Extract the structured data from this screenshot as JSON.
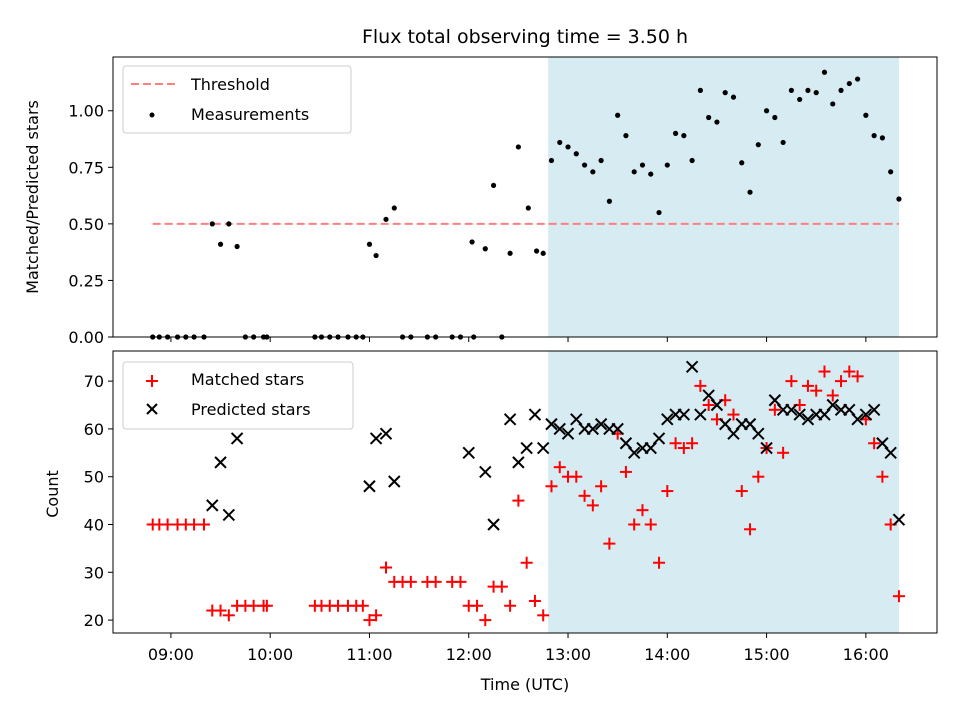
{
  "title": "Flux total observing time = 3.50 h",
  "colors": {
    "threshold": "#ff7f7f",
    "measurement": "#000000",
    "matched": "#ff0000",
    "predicted": "#000000",
    "span": "#add8e6"
  },
  "chart_data": [
    {
      "type": "scatter",
      "ylabel": "Matched/Predicted stars",
      "ylim": [
        0,
        1.2375
      ],
      "yticks": [
        "0.00",
        "0.25",
        "0.50",
        "0.75",
        "1.00"
      ],
      "legend": "top-left",
      "highlight_span": [
        "12:48",
        "16:20"
      ],
      "threshold": {
        "name": "Threshold",
        "value": 0.5,
        "x_start": "08:49",
        "x_end": "16:20"
      },
      "series": [
        {
          "name": "Measurements",
          "points": [
            [
              "08:49",
              0
            ],
            [
              "08:53",
              0
            ],
            [
              "08:58",
              0
            ],
            [
              "09:04",
              0
            ],
            [
              "09:09",
              0
            ],
            [
              "09:14",
              0
            ],
            [
              "09:20",
              0
            ],
            [
              "09:25",
              0.5
            ],
            [
              "09:30",
              0.41
            ],
            [
              "09:35",
              0.5
            ],
            [
              "09:40",
              0.4
            ],
            [
              "09:45",
              0
            ],
            [
              "09:50",
              0
            ],
            [
              "09:56",
              0
            ],
            [
              "09:58",
              0
            ],
            [
              "10:27",
              0
            ],
            [
              "10:31",
              0
            ],
            [
              "10:36",
              0
            ],
            [
              "10:41",
              0
            ],
            [
              "10:47",
              0
            ],
            [
              "10:52",
              0
            ],
            [
              "10:56",
              0
            ],
            [
              "11:00",
              0.41
            ],
            [
              "11:04",
              0.36
            ],
            [
              "11:10",
              0.52
            ],
            [
              "11:15",
              0.57
            ],
            [
              "11:20",
              0
            ],
            [
              "11:25",
              0
            ],
            [
              "11:35",
              0
            ],
            [
              "11:40",
              0
            ],
            [
              "11:50",
              0
            ],
            [
              "11:55",
              0
            ],
            [
              "12:02",
              0.42
            ],
            [
              "12:03",
              0
            ],
            [
              "12:10",
              0.39
            ],
            [
              "12:15",
              0.67
            ],
            [
              "12:20",
              0
            ],
            [
              "12:25",
              0.37
            ],
            [
              "12:30",
              0.84
            ],
            [
              "12:36",
              0.57
            ],
            [
              "12:41",
              0.38
            ],
            [
              "12:45",
              0.37
            ],
            [
              "12:50",
              0.78
            ],
            [
              "12:55",
              0.86
            ],
            [
              "13:00",
              0.84
            ],
            [
              "13:05",
              0.81
            ],
            [
              "13:10",
              0.76
            ],
            [
              "13:15",
              0.73
            ],
            [
              "13:20",
              0.78
            ],
            [
              "13:25",
              0.6
            ],
            [
              "13:30",
              0.98
            ],
            [
              "13:35",
              0.89
            ],
            [
              "13:40",
              0.73
            ],
            [
              "13:45",
              0.76
            ],
            [
              "13:50",
              0.72
            ],
            [
              "13:55",
              0.55
            ],
            [
              "14:00",
              0.76
            ],
            [
              "14:05",
              0.9
            ],
            [
              "14:10",
              0.89
            ],
            [
              "14:15",
              0.78
            ],
            [
              "14:20",
              1.09
            ],
            [
              "14:25",
              0.97
            ],
            [
              "14:30",
              0.95
            ],
            [
              "14:35",
              1.08
            ],
            [
              "14:40",
              1.06
            ],
            [
              "14:45",
              0.77
            ],
            [
              "14:50",
              0.64
            ],
            [
              "14:55",
              0.85
            ],
            [
              "15:00",
              1.0
            ],
            [
              "15:05",
              0.97
            ],
            [
              "15:10",
              0.86
            ],
            [
              "15:15",
              1.09
            ],
            [
              "15:20",
              1.05
            ],
            [
              "15:25",
              1.09
            ],
            [
              "15:30",
              1.08
            ],
            [
              "15:35",
              1.17
            ],
            [
              "15:40",
              1.03
            ],
            [
              "15:45",
              1.09
            ],
            [
              "15:50",
              1.12
            ],
            [
              "15:55",
              1.14
            ],
            [
              "16:00",
              0.98
            ],
            [
              "16:05",
              0.89
            ],
            [
              "16:10",
              0.88
            ],
            [
              "16:15",
              0.73
            ],
            [
              "16:20",
              0.61
            ]
          ]
        }
      ]
    },
    {
      "type": "scatter",
      "ylabel": "Count",
      "xlabel": "Time (UTC)",
      "ylim": [
        17.3,
        76.3
      ],
      "yticks": [
        "20",
        "30",
        "40",
        "50",
        "60",
        "70"
      ],
      "xlim": [
        "08:25",
        "16:43"
      ],
      "xticks": [
        "09:00",
        "10:00",
        "11:00",
        "12:00",
        "13:00",
        "14:00",
        "15:00",
        "16:00"
      ],
      "legend": "top-left",
      "highlight_span": [
        "12:48",
        "16:20"
      ],
      "series": [
        {
          "name": "Matched stars",
          "marker": "plus",
          "points": [
            [
              "08:49",
              40
            ],
            [
              "08:53",
              40
            ],
            [
              "08:58",
              40
            ],
            [
              "09:04",
              40
            ],
            [
              "09:09",
              40
            ],
            [
              "09:14",
              40
            ],
            [
              "09:20",
              40
            ],
            [
              "09:25",
              22
            ],
            [
              "09:30",
              22
            ],
            [
              "09:35",
              21
            ],
            [
              "09:40",
              23
            ],
            [
              "09:45",
              23
            ],
            [
              "09:50",
              23
            ],
            [
              "09:56",
              23
            ],
            [
              "09:58",
              23
            ],
            [
              "10:27",
              23
            ],
            [
              "10:31",
              23
            ],
            [
              "10:36",
              23
            ],
            [
              "10:41",
              23
            ],
            [
              "10:47",
              23
            ],
            [
              "10:52",
              23
            ],
            [
              "10:56",
              23
            ],
            [
              "11:00",
              20
            ],
            [
              "11:04",
              21
            ],
            [
              "11:10",
              31
            ],
            [
              "11:15",
              28
            ],
            [
              "11:20",
              28
            ],
            [
              "11:25",
              28
            ],
            [
              "11:35",
              28
            ],
            [
              "11:40",
              28
            ],
            [
              "11:50",
              28
            ],
            [
              "11:55",
              28
            ],
            [
              "12:00",
              23
            ],
            [
              "12:05",
              23
            ],
            [
              "12:10",
              20
            ],
            [
              "12:15",
              27
            ],
            [
              "12:20",
              27
            ],
            [
              "12:25",
              23
            ],
            [
              "12:30",
              45
            ],
            [
              "12:35",
              32
            ],
            [
              "12:40",
              24
            ],
            [
              "12:45",
              21
            ],
            [
              "12:50",
              48
            ],
            [
              "12:55",
              52
            ],
            [
              "13:00",
              50
            ],
            [
              "13:05",
              50
            ],
            [
              "13:10",
              46
            ],
            [
              "13:15",
              44
            ],
            [
              "13:20",
              48
            ],
            [
              "13:25",
              36
            ],
            [
              "13:30",
              59
            ],
            [
              "13:35",
              51
            ],
            [
              "13:40",
              40
            ],
            [
              "13:45",
              43
            ],
            [
              "13:50",
              40
            ],
            [
              "13:55",
              32
            ],
            [
              "14:00",
              47
            ],
            [
              "14:05",
              57
            ],
            [
              "14:10",
              56
            ],
            [
              "14:15",
              57
            ],
            [
              "14:20",
              69
            ],
            [
              "14:25",
              65
            ],
            [
              "14:30",
              62
            ],
            [
              "14:35",
              66
            ],
            [
              "14:40",
              63
            ],
            [
              "14:45",
              47
            ],
            [
              "14:50",
              39
            ],
            [
              "14:55",
              50
            ],
            [
              "15:00",
              56
            ],
            [
              "15:05",
              64
            ],
            [
              "15:10",
              55
            ],
            [
              "15:15",
              70
            ],
            [
              "15:20",
              65
            ],
            [
              "15:25",
              69
            ],
            [
              "15:30",
              68
            ],
            [
              "15:35",
              72
            ],
            [
              "15:40",
              67
            ],
            [
              "15:45",
              70
            ],
            [
              "15:50",
              72
            ],
            [
              "15:55",
              71
            ],
            [
              "16:00",
              62
            ],
            [
              "16:05",
              57
            ],
            [
              "16:10",
              50
            ],
            [
              "16:15",
              40
            ],
            [
              "16:20",
              25
            ]
          ]
        },
        {
          "name": "Predicted stars",
          "marker": "x",
          "points": [
            [
              "09:25",
              44
            ],
            [
              "09:30",
              53
            ],
            [
              "09:35",
              42
            ],
            [
              "09:40",
              58
            ],
            [
              "11:00",
              48
            ],
            [
              "11:04",
              58
            ],
            [
              "11:10",
              59
            ],
            [
              "11:15",
              49
            ],
            [
              "12:00",
              55
            ],
            [
              "12:10",
              51
            ],
            [
              "12:15",
              40
            ],
            [
              "12:25",
              62
            ],
            [
              "12:30",
              53
            ],
            [
              "12:35",
              56
            ],
            [
              "12:40",
              63
            ],
            [
              "12:45",
              56
            ],
            [
              "12:50",
              61
            ],
            [
              "12:55",
              60
            ],
            [
              "13:00",
              59
            ],
            [
              "13:05",
              62
            ],
            [
              "13:10",
              60
            ],
            [
              "13:15",
              60
            ],
            [
              "13:20",
              61
            ],
            [
              "13:25",
              60
            ],
            [
              "13:30",
              60
            ],
            [
              "13:35",
              57
            ],
            [
              "13:40",
              55
            ],
            [
              "13:45",
              56
            ],
            [
              "13:50",
              56
            ],
            [
              "13:55",
              58
            ],
            [
              "14:00",
              62
            ],
            [
              "14:05",
              63
            ],
            [
              "14:10",
              63
            ],
            [
              "14:15",
              73
            ],
            [
              "14:20",
              63
            ],
            [
              "14:25",
              67
            ],
            [
              "14:30",
              65
            ],
            [
              "14:35",
              61
            ],
            [
              "14:40",
              59
            ],
            [
              "14:45",
              61
            ],
            [
              "14:50",
              61
            ],
            [
              "14:55",
              59
            ],
            [
              "15:00",
              56
            ],
            [
              "15:05",
              66
            ],
            [
              "15:10",
              64
            ],
            [
              "15:15",
              64
            ],
            [
              "15:20",
              63
            ],
            [
              "15:25",
              62
            ],
            [
              "15:30",
              63
            ],
            [
              "15:35",
              63
            ],
            [
              "15:40",
              65
            ],
            [
              "15:45",
              64
            ],
            [
              "15:50",
              64
            ],
            [
              "15:55",
              62
            ],
            [
              "16:00",
              63
            ],
            [
              "16:05",
              64
            ],
            [
              "16:10",
              57
            ],
            [
              "16:15",
              55
            ],
            [
              "16:20",
              41
            ]
          ]
        }
      ]
    }
  ]
}
